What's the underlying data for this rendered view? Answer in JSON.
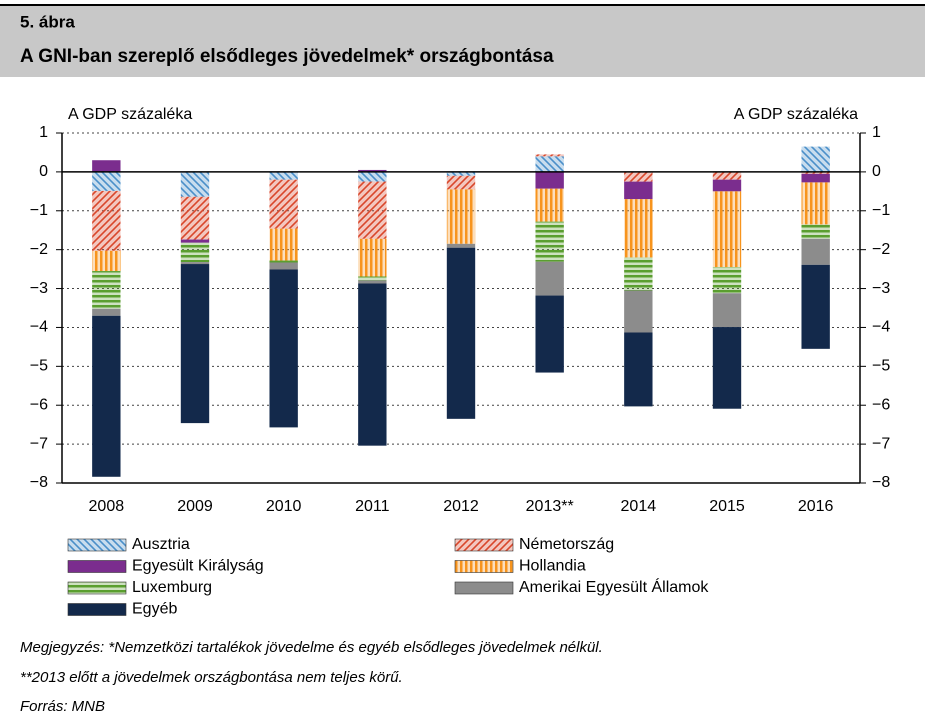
{
  "header": {
    "figure_number": "5. ábra",
    "title": "A GNI-ban szereplő elsődleges jövedelmek* országbontása"
  },
  "chart_data": {
    "type": "stacked-bar",
    "ylabel": "A GDP százaléka",
    "y2label": "A GDP százaléka",
    "categories": [
      "2008",
      "2009",
      "2010",
      "2011",
      "2012",
      "2013**",
      "2014",
      "2015",
      "2016"
    ],
    "ylim": [
      -8,
      1
    ],
    "yticks": [
      {
        "value": -8,
        "label": "−8"
      },
      {
        "value": -7,
        "label": "−7"
      },
      {
        "value": -6,
        "label": "−6"
      },
      {
        "value": -5,
        "label": "−5"
      },
      {
        "value": -4,
        "label": "−4"
      },
      {
        "value": -3,
        "label": "−3"
      },
      {
        "value": -2,
        "label": "−2"
      },
      {
        "value": -1,
        "label": "−1"
      },
      0,
      1
    ],
    "y2lim": [
      -8,
      1
    ],
    "y2ticks": [
      {
        "value": -8,
        "label": "−8"
      },
      {
        "value": -7,
        "label": "−7"
      },
      {
        "value": -6,
        "label": "−6"
      },
      {
        "value": -5,
        "label": "−5"
      },
      {
        "value": -4,
        "label": "−4"
      },
      {
        "value": -3,
        "label": "−3"
      },
      {
        "value": -2,
        "label": "−2"
      },
      {
        "value": -1,
        "label": "−1"
      },
      0,
      1
    ],
    "grid": true,
    "series": [
      {
        "name": "Ausztria",
        "color": "#4a8fc9",
        "pattern": "diagonal-back",
        "values": [
          -0.49,
          -0.64,
          -0.2,
          -0.25,
          -0.1,
          0.4,
          0,
          0,
          0.65
        ]
      },
      {
        "name": "Németország",
        "color": "#d9472b",
        "pattern": "diagonal",
        "values": [
          -1.54,
          -1.1,
          -1.26,
          -1.47,
          -0.35,
          0.05,
          -0.25,
          -0.2,
          -0.05
        ]
      },
      {
        "name": "Egyesült Királyság",
        "color": "#7b2d8e",
        "pattern": "solid",
        "values": [
          0.3,
          -0.08,
          0,
          0.05,
          0,
          -0.43,
          -0.45,
          -0.3,
          -0.22
        ]
      },
      {
        "name": "Hollandia",
        "color": "#f7941d",
        "pattern": "vertical",
        "values": [
          -0.52,
          0,
          -0.82,
          -0.97,
          -1.4,
          -0.85,
          -1.5,
          -1.95,
          -1.08
        ]
      },
      {
        "name": "Luxemburg",
        "color": "#5a9e2f",
        "pattern": "horizontal",
        "values": [
          -0.97,
          -0.5,
          -0.05,
          -0.1,
          0,
          -1.03,
          -0.85,
          -0.67,
          -0.37
        ]
      },
      {
        "name": "Amerikai Egyesült Államok",
        "color": "#8c8c8c",
        "pattern": "solid",
        "values": [
          -0.18,
          -0.05,
          -0.18,
          -0.08,
          -0.1,
          -0.87,
          -1.08,
          -0.87,
          -0.67
        ]
      },
      {
        "name": "Egyéb",
        "color": "#13294b",
        "pattern": "solid",
        "values": [
          -4.14,
          -4.09,
          -4.06,
          -4.17,
          -4.4,
          -1.98,
          -1.9,
          -2.1,
          -2.16
        ]
      }
    ]
  },
  "notes": [
    "Megjegyzés: *Nemzetközi tartalékok jövedelme és egyéb elsődleges jövedelmek nélkül.",
    "**2013 előtt a jövedelmek országbontása nem teljes körű.",
    "Forrás: MNB"
  ]
}
